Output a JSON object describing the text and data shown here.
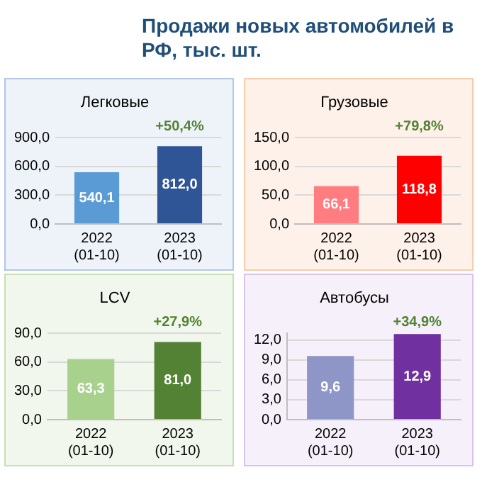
{
  "chart_data": [
    {
      "type": "other",
      "title": "Продажи новых автомобилей в РФ, тыс. шт."
    },
    {
      "type": "bar",
      "title": "Легковые",
      "categories": [
        "2022 (01-10)",
        "2023 (01-10)"
      ],
      "values": [
        540.1,
        812.0
      ],
      "colors": [
        "#5b9bd5",
        "#2f5597"
      ],
      "value_labels": [
        "540,1",
        "812,0"
      ],
      "ylim": [
        0,
        900
      ],
      "yticks": [
        {
          "value": 0,
          "label": "0,0"
        },
        {
          "value": 300,
          "label": "300,0"
        },
        {
          "value": 600,
          "label": "600,0"
        },
        {
          "value": 900,
          "label": "900,0"
        }
      ],
      "grid": "y",
      "annotations": [
        "+50,4%"
      ]
    },
    {
      "type": "bar",
      "title": "Грузовые",
      "categories": [
        "2022 (01-10)",
        "2023 (01-10)"
      ],
      "values": [
        66.1,
        118.8
      ],
      "colors": [
        "#ff7c80",
        "#ff0000"
      ],
      "value_labels": [
        "66,1",
        "118,8"
      ],
      "ylim": [
        0,
        150
      ],
      "yticks": [
        {
          "value": 0,
          "label": "0,0"
        },
        {
          "value": 50,
          "label": "50,0"
        },
        {
          "value": 100,
          "label": "100,0"
        },
        {
          "value": 150,
          "label": "150,0"
        }
      ],
      "grid": "y",
      "annotations": [
        "+79,8%"
      ]
    },
    {
      "type": "bar",
      "title": "LCV",
      "categories": [
        "2022 (01-10)",
        "2023 (01-10)"
      ],
      "values": [
        63.3,
        81.0
      ],
      "colors": [
        "#a9d18e",
        "#548235"
      ],
      "value_labels": [
        "63,3",
        "81,0"
      ],
      "ylim": [
        0,
        90
      ],
      "yticks": [
        {
          "value": 0,
          "label": "0,0"
        },
        {
          "value": 30,
          "label": "30,0"
        },
        {
          "value": 60,
          "label": "60,0"
        },
        {
          "value": 90,
          "label": "90,0"
        }
      ],
      "grid": "y",
      "annotations": [
        "+27,9%"
      ]
    },
    {
      "type": "bar",
      "title": "Автобусы",
      "categories": [
        "2022 (01-10)",
        "2023 (01-10)"
      ],
      "values": [
        9.6,
        12.9
      ],
      "colors": [
        "#8e96c8",
        "#7030a0"
      ],
      "value_labels": [
        "9,6",
        "12,9"
      ],
      "ylim": [
        0,
        13
      ],
      "yticks": [
        {
          "value": 0,
          "label": "0,0"
        },
        {
          "value": 3,
          "label": "3,0"
        },
        {
          "value": 6,
          "label": "6,0"
        },
        {
          "value": 9,
          "label": "9,0"
        },
        {
          "value": 12,
          "label": "12,0"
        }
      ],
      "grid": "y",
      "annotations": [
        "+34,9%"
      ]
    }
  ]
}
